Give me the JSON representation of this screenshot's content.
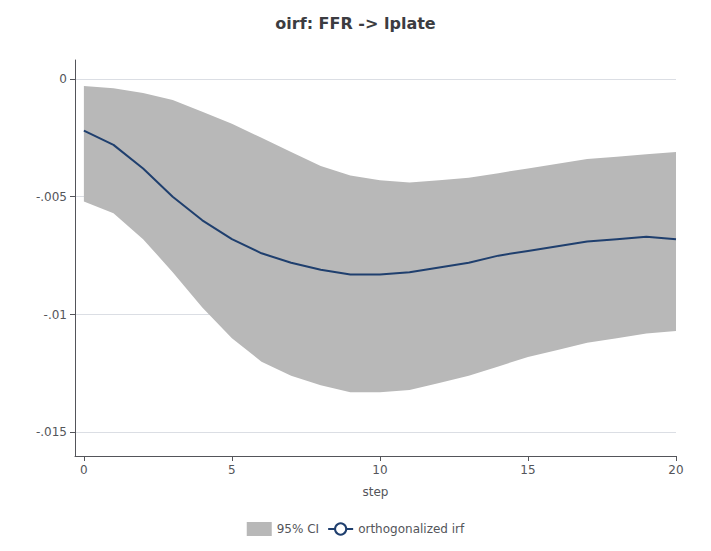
{
  "chart_data": {
    "type": "line",
    "title": "oirf: FFR -> lplate",
    "xlabel": "step",
    "x": [
      0,
      1,
      2,
      3,
      4,
      5,
      6,
      7,
      8,
      9,
      10,
      11,
      12,
      13,
      14,
      15,
      16,
      17,
      18,
      19,
      20
    ],
    "series": [
      {
        "name": "95% CI",
        "type": "band",
        "color": "#b8b8b8",
        "lower": [
          -0.0052,
          -0.0057,
          -0.0068,
          -0.0082,
          -0.0097,
          -0.011,
          -0.012,
          -0.0126,
          -0.013,
          -0.0133,
          -0.0133,
          -0.0132,
          -0.0129,
          -0.0126,
          -0.0122,
          -0.0118,
          -0.0115,
          -0.0112,
          -0.011,
          -0.0108,
          -0.0107
        ],
        "upper": [
          -0.0003,
          -0.0004,
          -0.0006,
          -0.0009,
          -0.0014,
          -0.0019,
          -0.0025,
          -0.0031,
          -0.0037,
          -0.0041,
          -0.0043,
          -0.0044,
          -0.0043,
          -0.0042,
          -0.004,
          -0.0038,
          -0.0036,
          -0.0034,
          -0.0033,
          -0.0032,
          -0.0031
        ]
      },
      {
        "name": "orthogonalized irf",
        "type": "line",
        "color": "#1f3f6e",
        "values": [
          -0.0022,
          -0.0028,
          -0.0038,
          -0.005,
          -0.006,
          -0.0068,
          -0.0074,
          -0.0078,
          -0.0081,
          -0.0083,
          -0.0083,
          -0.0082,
          -0.008,
          -0.0078,
          -0.0075,
          -0.0073,
          -0.0071,
          -0.0069,
          -0.0068,
          -0.0067,
          -0.0068
        ]
      }
    ],
    "xlim": [
      -0.3,
      20
    ],
    "ylim": [
      -0.016,
      0.0008
    ],
    "xticks": [
      0,
      5,
      10,
      15,
      20
    ],
    "yticks": [
      0,
      {
        "value": -0.005,
        "label": "-.005"
      },
      {
        "value": -0.01,
        "label": "-.01"
      },
      {
        "value": -0.015,
        "label": "-.015"
      }
    ],
    "grid": true,
    "legend": "bottom"
  }
}
